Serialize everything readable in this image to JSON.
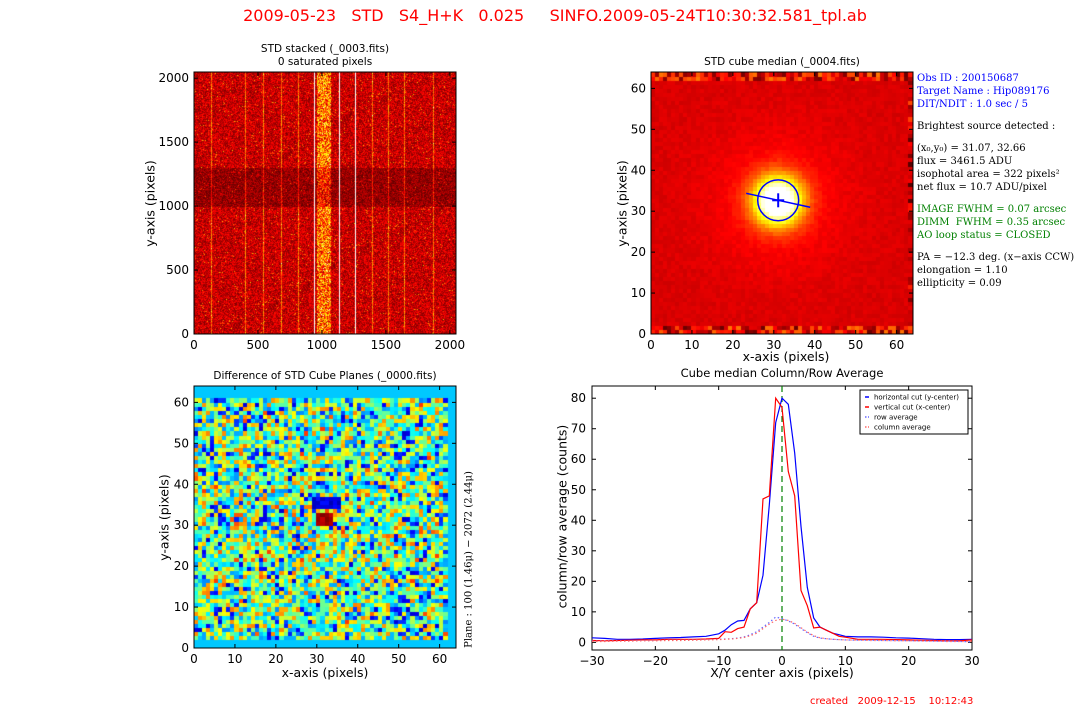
{
  "header": {
    "title": "2009-05-23   STD   S4_H+K   0.025     SINFO.2009-05-24T10:30:32.581_tpl.ab",
    "created": "created   2009-12-15    10:12:43",
    "title_color": "#ff0000"
  },
  "info_panel": {
    "blue_lines": [
      "Obs ID : 200150687",
      "Target Name : Hip089176",
      "DIT/NDIT : 1.0 sec / 5"
    ],
    "black_lines_1": [
      "Brightest source detected :"
    ],
    "source_lines": [
      "(x₀,y₀) = 31.07, 32.66",
      "flux = 3461.5 ADU",
      "isophotal area = 322 pixels²",
      "net flux = 10.7 ADU/pixel"
    ],
    "green_lines": [
      "IMAGE FWHM = 0.07 arcsec",
      "DIMM  FWHM = 0.35 arcsec",
      "AO loop status = CLOSED"
    ],
    "black_lines_2": [
      "PA = −12.3 deg. (x−axis CCW)",
      "elongation = 1.10",
      "ellipticity = 0.09"
    ],
    "colors": {
      "blue": "#0000ff",
      "green": "#008000",
      "black": "#000000"
    }
  },
  "side_label": "Plane : 100 (1.46μ) − 2072 (2.44μ)",
  "chart_data": [
    {
      "type": "heatmap",
      "id": "stacked",
      "title": "STD stacked (_0003.fits)\n0 saturated pixels",
      "xlabel": "",
      "ylabel": "y-axis (pixels)",
      "xlim": [
        0,
        2048
      ],
      "ylim": [
        0,
        2048
      ],
      "xticks": [
        "0",
        "500",
        "1000",
        "1500",
        "2000"
      ],
      "yticks": [
        "0",
        "500",
        "1000",
        "1500",
        "2000"
      ],
      "colormap": "hot",
      "bright_columns": [
        130,
        400,
        540,
        680,
        810,
        935,
        1130,
        1255,
        1390,
        1520,
        1640,
        1870
      ],
      "saturated_columns": [
        935,
        1130,
        1255
      ],
      "noisy_band": [
        960,
        1060
      ],
      "dark_band_y": [
        1000,
        1300
      ]
    },
    {
      "type": "heatmap",
      "id": "cube_median",
      "title": "STD cube median (_0004.fits)",
      "xlabel": "x-axis (pixels)",
      "ylabel": "y-axis (pixels)",
      "xlim": [
        0,
        64
      ],
      "ylim": [
        0,
        64
      ],
      "xticks": [
        "0",
        "10",
        "20",
        "30",
        "40",
        "50",
        "60"
      ],
      "yticks": [
        "0",
        "10",
        "20",
        "30",
        "40",
        "50",
        "60"
      ],
      "colormap": "hot",
      "source": {
        "x0": 31.07,
        "y0": 32.66,
        "radius": 5.0,
        "pa_deg": -12.3,
        "major_half_length": 8.0
      },
      "marker_color": "#0000ff"
    },
    {
      "type": "heatmap",
      "id": "difference",
      "title": "Difference of STD Cube Planes (_0000.fits)",
      "xlabel": "x-axis (pixels)",
      "ylabel": "y-axis (pixels)",
      "xlim": [
        0,
        64
      ],
      "ylim": [
        0,
        64
      ],
      "xticks": [
        "0",
        "10",
        "20",
        "30",
        "40",
        "50",
        "60"
      ],
      "yticks": [
        "0",
        "10",
        "20",
        "30",
        "40",
        "50",
        "60"
      ],
      "colormap": "jet",
      "features": [
        {
          "kind": "negative",
          "x": [
            29,
            36
          ],
          "y": [
            34,
            37
          ]
        },
        {
          "kind": "positive",
          "x": [
            30,
            34
          ],
          "y": [
            30,
            33
          ]
        }
      ]
    },
    {
      "type": "line",
      "id": "profile",
      "title": "Cube median Column/Row Average",
      "xlabel": "X/Y center axis (pixels)",
      "ylabel": "column/row average (counts)",
      "xlim": [
        -30,
        30
      ],
      "ylim": [
        -2.5,
        84
      ],
      "xticks": [
        -30,
        -20,
        -10,
        0,
        10,
        20,
        30
      ],
      "yticks": [
        0,
        10,
        20,
        30,
        40,
        50,
        60,
        70,
        80
      ],
      "legend_position": "top-right",
      "vline": {
        "x": 0,
        "color": "#008000",
        "style": "dashed"
      },
      "x": [
        -30,
        -28,
        -26,
        -24,
        -22,
        -20,
        -18,
        -16,
        -14,
        -12,
        -10,
        -9,
        -8,
        -7,
        -6,
        -5,
        -4,
        -3,
        -2,
        -1,
        0,
        1,
        2,
        3,
        4,
        5,
        6,
        7,
        8,
        9,
        10,
        12,
        14,
        16,
        18,
        20,
        22,
        24,
        26,
        28,
        30
      ],
      "series": [
        {
          "name": "horizontal cut (y-center)",
          "color": "#0000ff",
          "style": "solid",
          "values": [
            1.5,
            1.3,
            1.0,
            1.0,
            1.1,
            1.3,
            1.5,
            1.6,
            1.8,
            2.0,
            2.8,
            4.0,
            5.8,
            7.0,
            7.2,
            11,
            13,
            22,
            45,
            72,
            80,
            78,
            62,
            38,
            18,
            8,
            5,
            4,
            3,
            2.5,
            2,
            1.8,
            1.8,
            1.7,
            1.5,
            1.4,
            1.2,
            1.0,
            0.9,
            0.9,
            1.0
          ]
        },
        {
          "name": "vertical cut (x-center)",
          "color": "#ff0000",
          "style": "solid",
          "values": [
            0.6,
            0.5,
            0.6,
            0.7,
            0.8,
            0.8,
            1.0,
            1.0,
            1.0,
            1.1,
            1.3,
            3.5,
            3.3,
            4.5,
            5.0,
            11,
            13,
            47,
            48,
            80,
            77,
            56,
            48,
            17,
            12,
            4.7,
            5,
            4,
            3,
            2,
            1.7,
            1,
            1,
            1,
            0.9,
            0.8,
            0.7,
            0.6,
            0.5,
            0.5,
            0.8
          ]
        },
        {
          "name": "row average",
          "color": "#6666ff",
          "style": "dotted",
          "values": [
            0.4,
            0.4,
            0.5,
            0.5,
            0.6,
            0.6,
            0.7,
            0.7,
            0.8,
            0.9,
            1.0,
            1.1,
            1.2,
            1.4,
            1.8,
            2.5,
            3.5,
            5,
            6.5,
            8.3,
            7.8,
            7,
            6,
            4.5,
            3.2,
            2,
            1.4,
            1.2,
            1.0,
            0.9,
            0.8,
            0.7,
            0.7,
            0.6,
            0.6,
            0.5,
            0.5,
            0.4,
            0.4,
            0.3,
            0.2
          ]
        },
        {
          "name": "column average",
          "color": "#ff6666",
          "style": "dotted",
          "values": [
            0.3,
            0.3,
            0.4,
            0.4,
            0.5,
            0.5,
            0.6,
            0.6,
            0.7,
            0.8,
            0.9,
            1.0,
            1.1,
            1.3,
            1.6,
            2.2,
            3.0,
            4.5,
            6,
            7.2,
            7.6,
            7.2,
            6.2,
            4.8,
            3.4,
            2.2,
            1.5,
            1.2,
            1.0,
            0.9,
            0.8,
            0.7,
            0.6,
            0.6,
            0.5,
            0.5,
            0.4,
            0.4,
            0.3,
            0.3,
            0.3
          ]
        }
      ]
    }
  ]
}
